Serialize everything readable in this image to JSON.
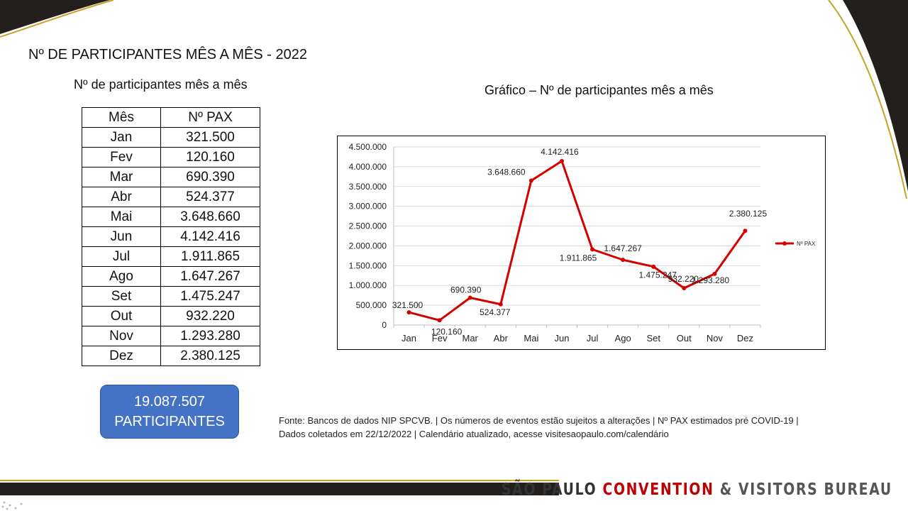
{
  "page": {
    "title": "Nº DE PARTICIPANTES MÊS A MÊS - 2022",
    "table_heading": "Nº de participantes mês a mês",
    "chart_heading": "Gráfico – Nº de participantes mês a mês"
  },
  "table": {
    "headers": [
      "Mês",
      "Nº PAX"
    ],
    "rows": [
      [
        "Jan",
        "321.500"
      ],
      [
        "Fev",
        "120.160"
      ],
      [
        "Mar",
        "690.390"
      ],
      [
        "Abr",
        "524.377"
      ],
      [
        "Mai",
        "3.648.660"
      ],
      [
        "Jun",
        "4.142.416"
      ],
      [
        "Jul",
        "1.911.865"
      ],
      [
        "Ago",
        "1.647.267"
      ],
      [
        "Set",
        "1.475.247"
      ],
      [
        "Out",
        "932.220"
      ],
      [
        "Nov",
        "1.293.280"
      ],
      [
        "Dez",
        "2.380.125"
      ]
    ]
  },
  "total": {
    "value": "19.087.507",
    "label": "PARTICIPANTES"
  },
  "footnote": {
    "line1": "Fonte: Bancos de dados NIP SPCVB. | Os números de eventos estão sujeitos a alterações | Nº PAX estimados pré COVID-19 |",
    "line2": "Dados coletados em 22/12/2022  | Calendário atualizado, acesse visitesaopaulo.com/calendário"
  },
  "brand": {
    "part1": "SÃO PAULO ",
    "part2": "CONVENTION",
    "part3": " & VISITORS BUREAU"
  },
  "colors": {
    "series": "#d40000",
    "total_box": "#4472c4",
    "brand_accent": "#c00000",
    "decor_dark": "#231f1c",
    "decor_gold": "#c9a227"
  },
  "chart_data": {
    "type": "line",
    "categories": [
      "Jan",
      "Fev",
      "Mar",
      "Abr",
      "Mai",
      "Jun",
      "Jul",
      "Ago",
      "Set",
      "Out",
      "Nov",
      "Dez"
    ],
    "series": [
      {
        "name": "Nº PAX",
        "values": [
          321500,
          120160,
          690390,
          524377,
          3648660,
          4142416,
          1911865,
          1647267,
          1475247,
          932220,
          1293280,
          2380125
        ],
        "labels": [
          "321.500",
          "120.160",
          "690.390",
          "524.377",
          "3.648.660",
          "4.142.416",
          "1.911.865",
          "1.647.267",
          "1.475.247",
          "932.220",
          "1.293.280",
          "2.380.125"
        ]
      }
    ],
    "yticks": [
      0,
      500000,
      1000000,
      1500000,
      2000000,
      2500000,
      3000000,
      3500000,
      4000000,
      4500000
    ],
    "ytick_labels": [
      "0",
      "500.000",
      "1.000.000",
      "1.500.000",
      "2.000.000",
      "2.500.000",
      "3.000.000",
      "3.500.000",
      "4.000.000",
      "4.500.000"
    ],
    "ylim": [
      0,
      4500000
    ],
    "grid": true,
    "legend": "right"
  }
}
